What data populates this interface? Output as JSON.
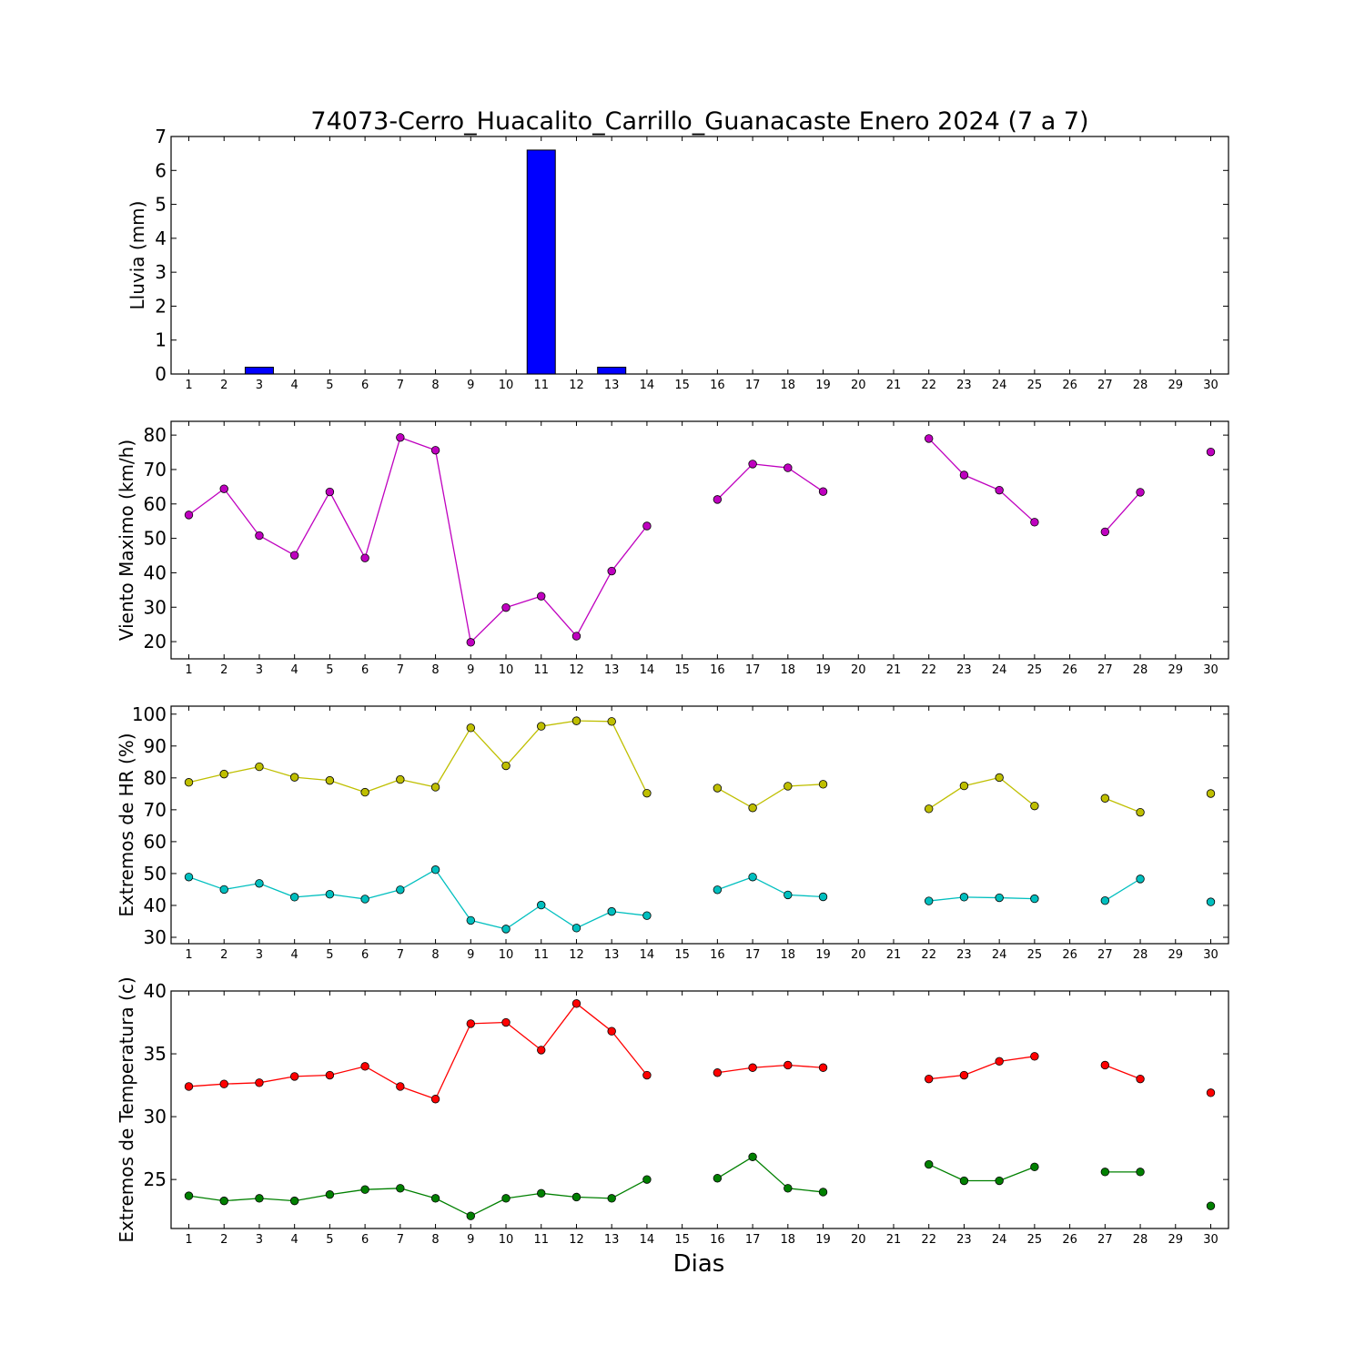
{
  "chart_data": {
    "title": "74073-Cerro_Huacalito_Carrillo_Guanacaste Enero 2024  (7 a 7)",
    "xlabel": "Dias",
    "days": [
      1,
      2,
      3,
      4,
      5,
      6,
      7,
      8,
      9,
      10,
      11,
      12,
      13,
      14,
      15,
      16,
      17,
      18,
      19,
      20,
      21,
      22,
      23,
      24,
      25,
      26,
      27,
      28,
      29,
      30
    ],
    "panels": [
      {
        "type": "bar",
        "ylabel": "Lluvia (mm)",
        "ylim": [
          0,
          7
        ],
        "yticks": [
          0,
          1,
          2,
          3,
          4,
          5,
          6,
          7
        ],
        "series": [
          {
            "color": "#0000ff",
            "values": [
              0,
              0,
              0.2,
              0,
              0,
              0,
              0,
              0,
              0,
              0,
              6.6,
              0,
              0.2,
              0,
              0,
              0,
              0,
              0,
              0,
              0,
              0,
              0,
              0,
              0,
              0,
              0,
              0,
              0,
              0,
              0
            ]
          }
        ]
      },
      {
        "type": "line",
        "ylabel": "Viento Maximo (km/h)",
        "ylim": [
          15,
          84
        ],
        "yticks": [
          20,
          30,
          40,
          50,
          60,
          70,
          80
        ],
        "series": [
          {
            "color": "#bf00bf",
            "values": [
              56.8,
              64.4,
              50.8,
              45.1,
              63.5,
              44.3,
              79.3,
              75.6,
              19.8,
              29.9,
              33.2,
              21.6,
              40.5,
              53.6,
              null,
              61.3,
              71.6,
              70.5,
              63.6,
              null,
              null,
              79.0,
              68.4,
              64.0,
              54.7,
              null,
              51.9,
              63.4,
              null,
              75.1
            ]
          }
        ]
      },
      {
        "type": "line",
        "ylabel": "Extremos de HR (%)",
        "ylim": [
          28,
          102.5
        ],
        "yticks": [
          30,
          40,
          50,
          60,
          70,
          80,
          90,
          100
        ],
        "series": [
          {
            "color": "#bfbf00",
            "values": [
              78.6,
              81.2,
              83.5,
              80.2,
              79.2,
              75.5,
              79.5,
              77.1,
              95.7,
              83.8,
              96.2,
              97.9,
              97.7,
              75.2,
              null,
              76.8,
              70.6,
              77.4,
              78.0,
              null,
              null,
              70.3,
              77.5,
              80.1,
              71.2,
              null,
              73.6,
              69.2,
              null,
              75.1
            ]
          },
          {
            "color": "#00bfbf",
            "values": [
              48.9,
              45.0,
              46.9,
              42.6,
              43.5,
              42.0,
              44.9,
              51.2,
              35.3,
              32.6,
              40.1,
              32.9,
              38.1,
              36.8,
              null,
              44.9,
              48.9,
              43.3,
              42.7,
              null,
              null,
              41.4,
              42.6,
              42.4,
              42.1,
              null,
              41.5,
              48.3,
              null,
              41.1
            ]
          }
        ]
      },
      {
        "type": "line",
        "ylabel": "Extremos de Temperatura (c)",
        "ylim": [
          21.1,
          40
        ],
        "yticks": [
          25,
          30,
          35,
          40
        ],
        "series": [
          {
            "color": "#ff0000",
            "values": [
              32.4,
              32.6,
              32.7,
              33.2,
              33.3,
              34.0,
              32.4,
              31.4,
              37.4,
              37.5,
              35.3,
              39.0,
              36.8,
              33.3,
              null,
              33.5,
              33.9,
              34.1,
              33.9,
              null,
              null,
              33.0,
              33.3,
              34.4,
              34.8,
              null,
              34.1,
              33.0,
              null,
              31.9
            ]
          },
          {
            "color": "#008000",
            "values": [
              23.7,
              23.3,
              23.5,
              23.3,
              23.8,
              24.2,
              24.3,
              23.5,
              22.1,
              23.5,
              23.9,
              23.6,
              23.5,
              25.0,
              null,
              25.1,
              26.8,
              24.3,
              24.0,
              null,
              null,
              26.2,
              24.9,
              24.9,
              26.0,
              null,
              25.6,
              25.6,
              null,
              22.9
            ]
          }
        ]
      }
    ]
  }
}
